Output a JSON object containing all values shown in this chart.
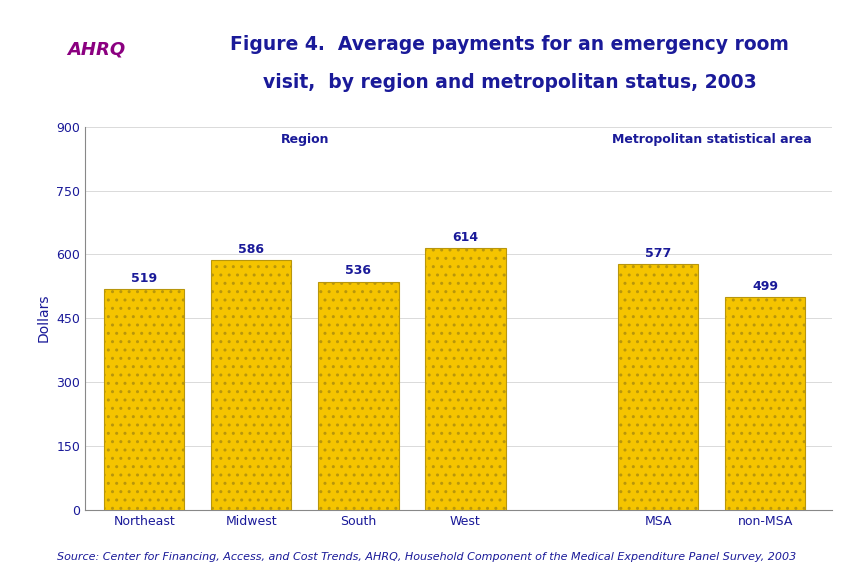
{
  "categories": [
    "Northeast",
    "Midwest",
    "South",
    "West",
    "MSA",
    "non-MSA"
  ],
  "values": [
    519,
    586,
    536,
    614,
    577,
    499
  ],
  "bar_color": "#F5C400",
  "bar_edgecolor": "#B8960C",
  "title_line1": "Figure 4.  Average payments for an emergency room",
  "title_line2": "visit,  by region and metropolitan status, 2003",
  "ylabel": "Dollars",
  "ylim": [
    0,
    900
  ],
  "yticks": [
    0,
    150,
    300,
    450,
    600,
    750,
    900
  ],
  "region_label": "Region",
  "msa_label": "Metropolitan statistical area",
  "source_text": "Source: Center for Financing, Access, and Cost Trends, AHRQ, Household Component of the Medical Expenditure Panel Survey, 2003",
  "title_color": "#1A1A99",
  "label_color": "#1A1A99",
  "axis_color": "#333333",
  "source_color": "#1A1A99",
  "background_color": "#FFFFFF",
  "divider_color": "#00008B",
  "logo_bg_color": "#0077AA",
  "font_size_title": 13.5,
  "font_size_labels": 9,
  "font_size_source": 8,
  "font_size_ylabel": 10,
  "font_size_value": 9,
  "font_size_group_label": 9,
  "x_positions": [
    0,
    1,
    2,
    3,
    4.8,
    5.8
  ],
  "bar_width": 0.75
}
